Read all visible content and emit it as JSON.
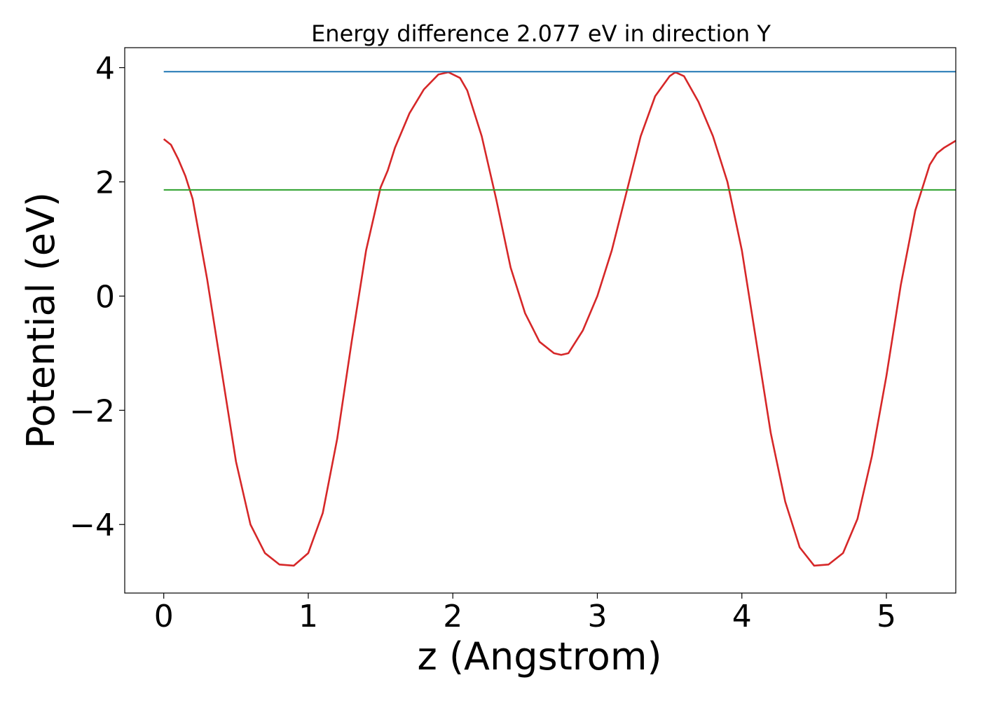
{
  "chart_data": {
    "type": "line",
    "title": "Energy difference 2.077 eV in direction Y",
    "xlabel": "z (Angstrom)",
    "ylabel": "Potential (eV)",
    "xlim": [
      -0.27,
      5.48
    ],
    "ylim": [
      -5.2,
      4.35
    ],
    "xticks": [
      0,
      1,
      2,
      3,
      4,
      5
    ],
    "xtick_labels": [
      "0",
      "1",
      "2",
      "3",
      "4",
      "5"
    ],
    "yticks": [
      -4,
      -2,
      0,
      2,
      4
    ],
    "ytick_labels": [
      "−4",
      "−2",
      "0",
      "2",
      "4"
    ],
    "grid": false,
    "series": [
      {
        "color": "#d62728",
        "x": [
          0.0,
          0.05,
          0.1,
          0.15,
          0.2,
          0.3,
          0.4,
          0.5,
          0.6,
          0.7,
          0.8,
          0.9,
          1.0,
          1.1,
          1.2,
          1.3,
          1.4,
          1.5,
          1.55,
          1.6,
          1.7,
          1.8,
          1.9,
          1.97,
          2.05,
          2.1,
          2.2,
          2.3,
          2.4,
          2.5,
          2.6,
          2.7,
          2.75,
          2.8,
          2.9,
          3.0,
          3.1,
          3.2,
          3.3,
          3.4,
          3.5,
          3.54,
          3.6,
          3.7,
          3.8,
          3.9,
          4.0,
          4.1,
          4.2,
          4.3,
          4.4,
          4.5,
          4.6,
          4.7,
          4.8,
          4.9,
          5.0,
          5.1,
          5.2,
          5.3,
          5.35,
          5.4,
          5.48
        ],
        "y": [
          2.75,
          2.65,
          2.4,
          2.1,
          1.7,
          0.3,
          -1.3,
          -2.9,
          -4.0,
          -4.5,
          -4.7,
          -4.72,
          -4.5,
          -3.8,
          -2.5,
          -0.8,
          0.8,
          1.9,
          2.2,
          2.6,
          3.2,
          3.62,
          3.88,
          3.92,
          3.82,
          3.6,
          2.8,
          1.7,
          0.5,
          -0.3,
          -0.8,
          -1.0,
          -1.03,
          -1.0,
          -0.6,
          0.0,
          0.8,
          1.8,
          2.8,
          3.5,
          3.85,
          3.92,
          3.85,
          3.4,
          2.8,
          2.0,
          0.8,
          -0.8,
          -2.4,
          -3.6,
          -4.4,
          -4.72,
          -4.7,
          -4.5,
          -3.9,
          -2.8,
          -1.4,
          0.2,
          1.5,
          2.3,
          2.5,
          2.6,
          2.72
        ]
      },
      {
        "color": "#1f77b4",
        "x": [
          0.0,
          5.48
        ],
        "y": [
          3.93,
          3.93
        ]
      },
      {
        "color": "#2ca02c",
        "x": [
          0.0,
          5.48
        ],
        "y": [
          1.86,
          1.86
        ]
      }
    ]
  }
}
